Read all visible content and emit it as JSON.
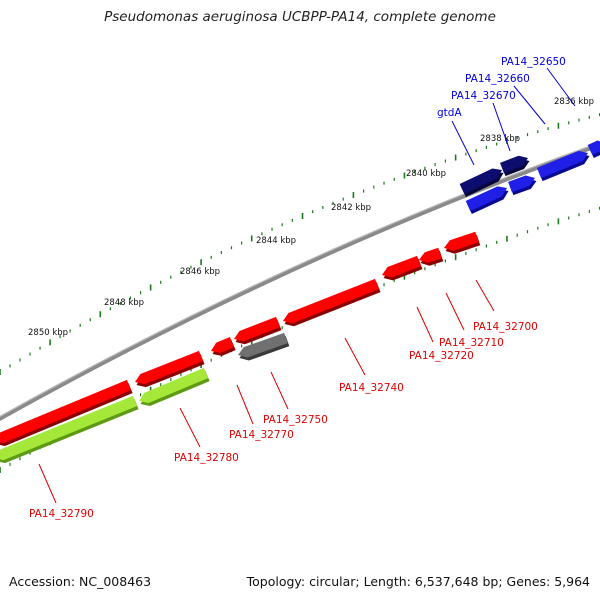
{
  "title": "Pseudomonas aeruginosa UCBPP-PA14, complete genome",
  "footer": {
    "accession": "Accession: NC_008463",
    "summary": "Topology: circular; Length: 6,537,648 bp; Genes: 5,964"
  },
  "colors": {
    "forward_gene": "#1f1fe8",
    "forward_gene_dark": "#0d0d70",
    "reverse_gene": "#ff0000",
    "reverse_gene_pseudo": "#707070",
    "rna_track": "#a6e83a",
    "backbone": "#8a8a8a",
    "tick": "#1a7a1a",
    "forward_label": "#0000dd",
    "reverse_label": "#dd0000"
  },
  "scale_labels": [
    "2836 kbp",
    "2838 kbp",
    "2840 kbp",
    "2842 kbp",
    "2844 kbp",
    "2846 kbp",
    "2848 kbp",
    "2850 kbp"
  ],
  "forward_labels": [
    "PA14_32650",
    "PA14_32660",
    "PA14_32670",
    "gtdA"
  ],
  "reverse_labels": [
    "PA14_32700",
    "PA14_32710",
    "PA14_32720",
    "PA14_32740",
    "PA14_32750",
    "PA14_32770",
    "PA14_32780",
    "PA14_32790"
  ]
}
